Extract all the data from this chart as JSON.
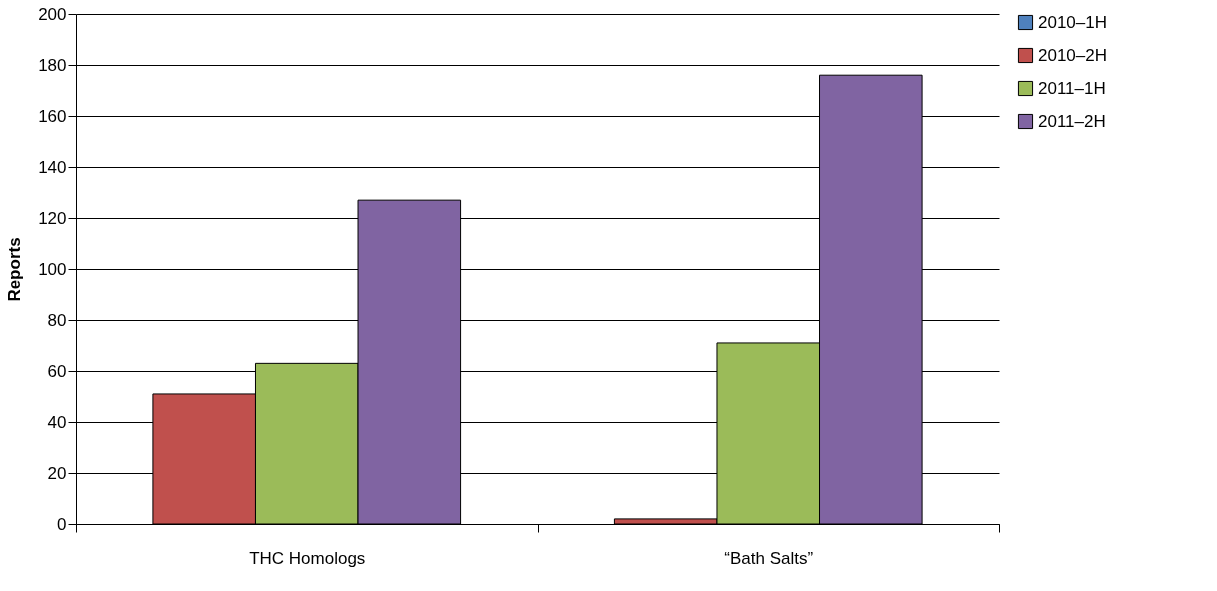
{
  "chart_data": {
    "type": "bar",
    "ylabel": "Reports",
    "categories": [
      "THC Homologs",
      "“Bath Salts”"
    ],
    "series": [
      {
        "name": "2010–1H",
        "color": "#4f81bd",
        "values": [
          null,
          null
        ]
      },
      {
        "name": "2010–2H",
        "color": "#c0504d",
        "values": [
          51,
          2
        ]
      },
      {
        "name": "2011–1H",
        "color": "#9bbb59",
        "values": [
          63,
          71
        ]
      },
      {
        "name": "2011–2H",
        "color": "#8064a2",
        "values": [
          127,
          176
        ]
      }
    ],
    "ylim": [
      0,
      200
    ],
    "yticks": [
      0,
      20,
      40,
      60,
      80,
      100,
      120,
      140,
      160,
      180,
      200
    ],
    "grid": "y",
    "legend": "right"
  }
}
